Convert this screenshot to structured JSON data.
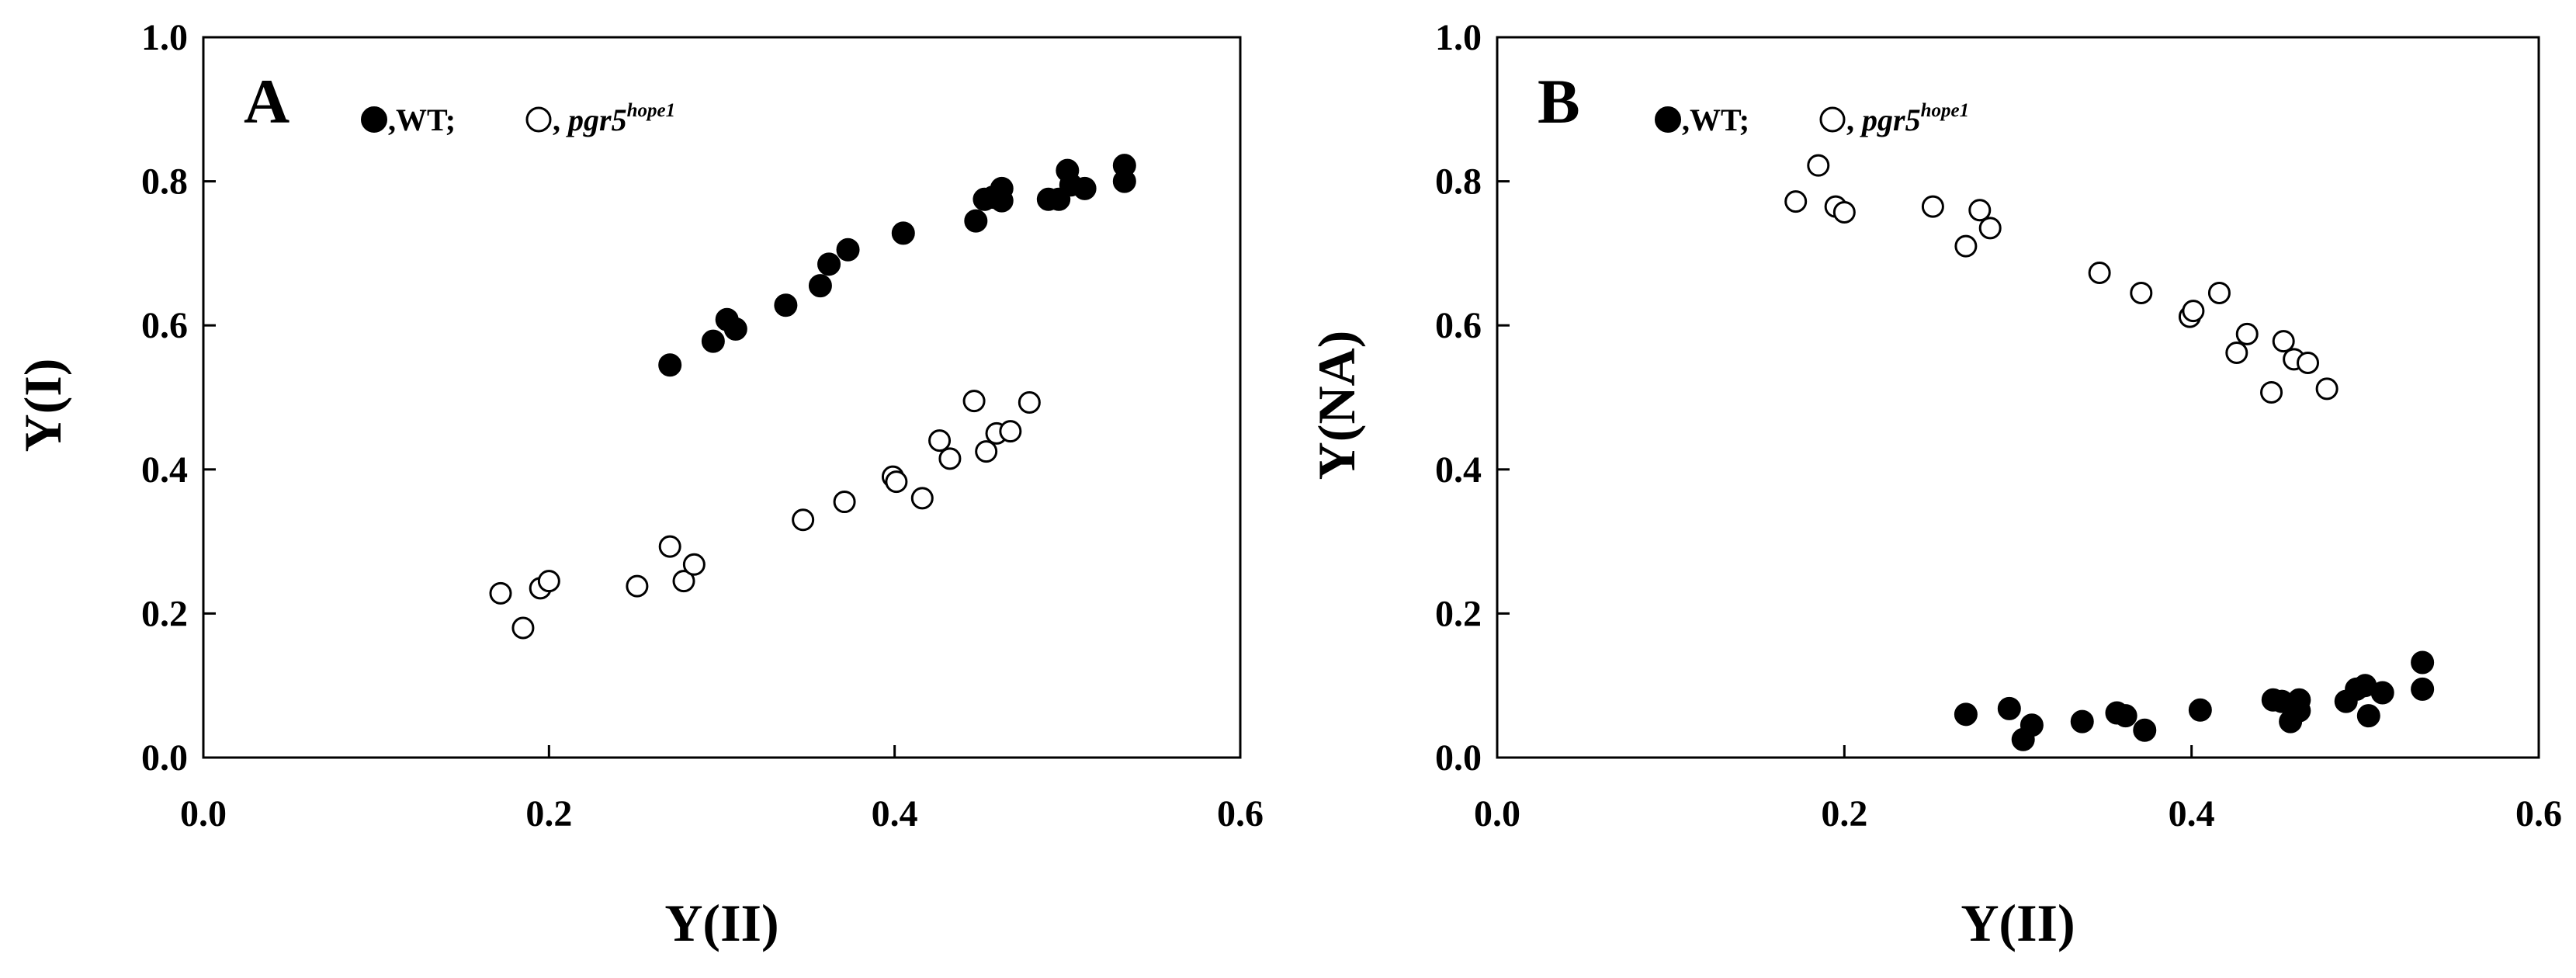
{
  "chart_data": [
    {
      "type": "scatter",
      "panel_label": "A",
      "xlabel": "Y(II)",
      "ylabel": "Y(I)",
      "xlim": [
        0.0,
        0.6
      ],
      "ylim": [
        0.0,
        1.0
      ],
      "xticks": [
        "0.0",
        "0.2",
        "0.4",
        "0.6"
      ],
      "yticks": [
        "0.0",
        "0.2",
        "0.4",
        "0.6",
        "0.8",
        "1.0"
      ],
      "grid": false,
      "legend": {
        "placement": "top-left",
        "sep": ",",
        "end": ";",
        "entries": [
          {
            "marker": "filled-circle",
            "text": "WT"
          },
          {
            "marker": "open-circle",
            "text": "pgr5",
            "sup": "hope1"
          }
        ]
      },
      "series": [
        {
          "marker": "filled",
          "x": [
            0.27,
            0.295,
            0.303,
            0.308,
            0.337,
            0.357,
            0.362,
            0.373,
            0.405,
            0.447,
            0.452,
            0.457,
            0.462,
            0.462,
            0.489,
            0.495,
            0.5,
            0.502,
            0.51,
            0.533,
            0.533
          ],
          "y": [
            0.545,
            0.578,
            0.608,
            0.595,
            0.628,
            0.655,
            0.685,
            0.705,
            0.728,
            0.745,
            0.775,
            0.778,
            0.773,
            0.79,
            0.775,
            0.775,
            0.815,
            0.795,
            0.79,
            0.8,
            0.822
          ]
        },
        {
          "marker": "open",
          "x": [
            0.172,
            0.185,
            0.195,
            0.2,
            0.251,
            0.27,
            0.278,
            0.284,
            0.347,
            0.371,
            0.399,
            0.401,
            0.416,
            0.426,
            0.432,
            0.446,
            0.453,
            0.459,
            0.467,
            0.478
          ],
          "y": [
            0.228,
            0.18,
            0.235,
            0.245,
            0.238,
            0.293,
            0.245,
            0.268,
            0.33,
            0.355,
            0.39,
            0.383,
            0.36,
            0.44,
            0.415,
            0.495,
            0.425,
            0.45,
            0.453,
            0.493
          ]
        }
      ]
    },
    {
      "type": "scatter",
      "panel_label": "B",
      "xlabel": "Y(II)",
      "ylabel": "Y(NA)",
      "xlim": [
        0.0,
        0.6
      ],
      "ylim": [
        0.0,
        1.0
      ],
      "xticks": [
        "0.0",
        "0.2",
        "0.4",
        "0.6"
      ],
      "yticks": [
        "0.0",
        "0.2",
        "0.4",
        "0.6",
        "0.8",
        "1.0"
      ],
      "grid": false,
      "legend": {
        "placement": "top-left",
        "sep": ",",
        "end": ";",
        "entries": [
          {
            "marker": "filled-circle",
            "text": "WT"
          },
          {
            "marker": "open-circle",
            "text": "pgr5",
            "sup": "hope1"
          }
        ]
      },
      "series": [
        {
          "marker": "filled",
          "x": [
            0.27,
            0.295,
            0.303,
            0.308,
            0.337,
            0.357,
            0.362,
            0.373,
            0.405,
            0.447,
            0.452,
            0.457,
            0.462,
            0.462,
            0.489,
            0.495,
            0.5,
            0.502,
            0.51,
            0.533,
            0.533
          ],
          "y": [
            0.06,
            0.068,
            0.025,
            0.045,
            0.05,
            0.062,
            0.058,
            0.038,
            0.066,
            0.08,
            0.078,
            0.05,
            0.08,
            0.065,
            0.078,
            0.095,
            0.1,
            0.058,
            0.09,
            0.095,
            0.132
          ]
        },
        {
          "marker": "open",
          "x": [
            0.172,
            0.185,
            0.195,
            0.2,
            0.251,
            0.27,
            0.278,
            0.284,
            0.347,
            0.371,
            0.399,
            0.401,
            0.416,
            0.426,
            0.432,
            0.446,
            0.453,
            0.459,
            0.467,
            0.478
          ],
          "y": [
            0.772,
            0.822,
            0.765,
            0.757,
            0.765,
            0.71,
            0.76,
            0.735,
            0.673,
            0.645,
            0.612,
            0.62,
            0.645,
            0.562,
            0.588,
            0.507,
            0.578,
            0.553,
            0.548,
            0.512
          ]
        }
      ]
    }
  ]
}
